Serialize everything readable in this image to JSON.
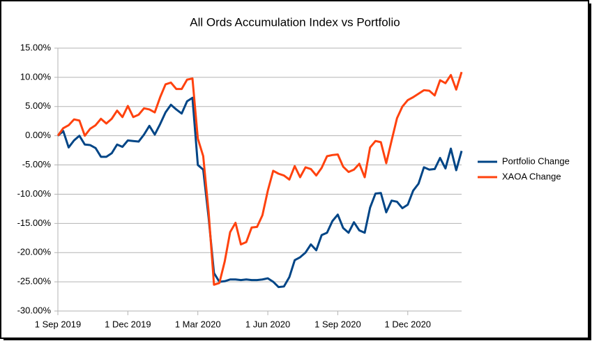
{
  "chart_data": {
    "type": "line",
    "title": "All Ords Accumulation Index vs Portfolio",
    "categories": [
      "1 Sep 2019",
      null,
      null,
      null,
      null,
      null,
      null,
      null,
      null,
      null,
      null,
      null,
      null,
      "1 Dec 2019",
      null,
      null,
      null,
      null,
      null,
      null,
      null,
      null,
      null,
      null,
      null,
      null,
      "1 Mar 2020",
      null,
      null,
      null,
      null,
      null,
      null,
      null,
      null,
      null,
      null,
      null,
      null,
      "1 Jun 2020",
      null,
      null,
      null,
      null,
      null,
      null,
      null,
      null,
      null,
      null,
      null,
      null,
      "1 Sep 2020",
      null,
      null,
      null,
      null,
      null,
      null,
      null,
      null,
      null,
      null,
      null,
      null,
      "1 Dec 2020",
      null,
      null,
      null,
      null,
      null,
      null,
      null,
      null,
      null,
      null
    ],
    "series": [
      {
        "name": "Portfolio Change",
        "color": "#004586",
        "values": [
          0,
          0.8,
          -2.0,
          -0.8,
          0,
          -1.5,
          -1.6,
          -2.1,
          -3.6,
          -3.6,
          -3.0,
          -1.5,
          -1.9,
          -0.8,
          -0.9,
          -1.0,
          0.2,
          1.7,
          0.2,
          2.0,
          4.0,
          5.3,
          4.5,
          3.8,
          5.9,
          6.5,
          -5.0,
          -5.8,
          -14,
          -23.5,
          -25.0,
          -24.9,
          -24.6,
          -24.6,
          -24.7,
          -24.6,
          -24.7,
          -24.7,
          -24.6,
          -24.4,
          -25.0,
          -25.9,
          -25.8,
          -24.2,
          -21.3,
          -20.8,
          -20.0,
          -18.6,
          -19.6,
          -17.0,
          -16.6,
          -14.6,
          -13.5,
          -15.8,
          -16.6,
          -14.8,
          -16.2,
          -16.6,
          -12.3,
          -9.9,
          -9.8,
          -13.1,
          -11.1,
          -11.3,
          -12.4,
          -11.8,
          -9.4,
          -8.2,
          -5.4,
          -5.8,
          -5.7,
          -3.8,
          -5.6,
          -2.2,
          -5.9,
          -2.6
        ]
      },
      {
        "name": "XAOA Change",
        "color": "#ff420e",
        "values": [
          0,
          1.3,
          1.8,
          2.8,
          2.6,
          0,
          1.2,
          1.8,
          2.9,
          2.1,
          2.9,
          4.3,
          3.2,
          5.1,
          3.2,
          3.6,
          4.7,
          4.5,
          4.0,
          6.6,
          8.8,
          9.1,
          8.0,
          8.0,
          9.6,
          9.8,
          -0.5,
          -3.5,
          -13,
          -25.5,
          -25.2,
          -21.5,
          -16.5,
          -14.9,
          -18.6,
          -18.2,
          -15.7,
          -15.6,
          -13.6,
          -9.4,
          -6.0,
          -6.5,
          -6.8,
          -7.5,
          -5.2,
          -7.1,
          -5.4,
          -5.7,
          -6.8,
          -5.5,
          -3.5,
          -3.3,
          -3.2,
          -5.3,
          -6.2,
          -5.8,
          -4.8,
          -7.1,
          -2.0,
          -0.9,
          -1.1,
          -4.7,
          -0.8,
          3.0,
          5.0,
          6.1,
          6.6,
          7.2,
          7.8,
          7.7,
          6.9,
          9.5,
          9.0,
          10.4,
          7.9,
          10.9
        ]
      }
    ],
    "ylim": [
      -30,
      15
    ],
    "yticks": [
      {
        "value": -30,
        "label": "-30.00%"
      },
      {
        "value": -25,
        "label": "-25.00%"
      },
      {
        "value": -20,
        "label": "-20.00%"
      },
      {
        "value": -15,
        "label": "-15.00%"
      },
      {
        "value": -10,
        "label": "-10.00%"
      },
      {
        "value": -5,
        "label": "-5.00%"
      },
      {
        "value": 0,
        "label": "0.00%"
      },
      {
        "value": 5,
        "label": "5.00%"
      },
      {
        "value": 10,
        "label": "10.00%"
      },
      {
        "value": 15,
        "label": "15.00%"
      }
    ],
    "grid": true,
    "legend": "right"
  }
}
